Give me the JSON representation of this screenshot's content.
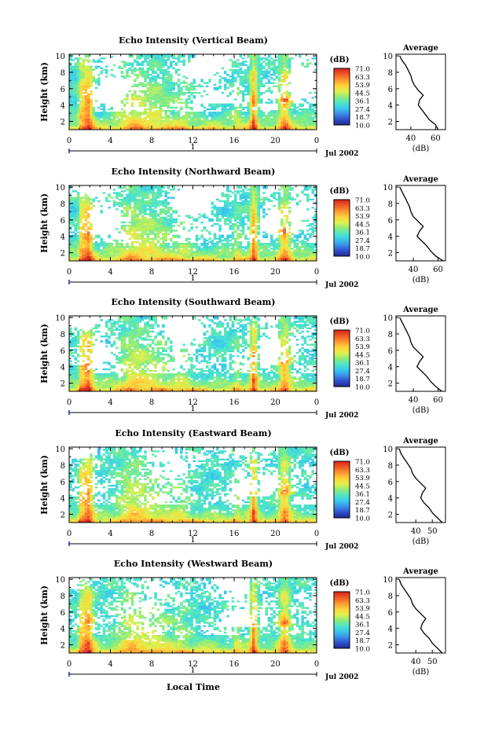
{
  "chart_data": {
    "type": "heatmap",
    "xlabel": "Local Time",
    "date_label": "Jul 2002",
    "day_label": "1",
    "x_ticks": [
      "0",
      "4",
      "8",
      "12",
      "16",
      "20",
      "0"
    ],
    "xlim": [
      0,
      24
    ],
    "ylabel": "Height (km)",
    "y_ticks": [
      "2",
      "4",
      "6",
      "8",
      "10"
    ],
    "ylim": [
      1,
      10.2
    ],
    "colorbar": {
      "title": "(dB)",
      "ticks": [
        "71.0",
        "63.3",
        "53.9",
        "44.5",
        "36.1",
        "27.4",
        "18.7",
        "10.0"
      ],
      "range": [
        10.0,
        71.0
      ],
      "colors": [
        "#1e2a8c",
        "#2f4cc8",
        "#3b8ee8",
        "#38c8ee",
        "#4ee6c8",
        "#8cec7a",
        "#e0f04c",
        "#ffd23a",
        "#ff9830",
        "#f05a26",
        "#d8241e"
      ]
    },
    "panels": [
      {
        "title": "Echo Intensity (Vertical Beam)",
        "profile_title": "Average",
        "profile_xlabel": "(dB)",
        "profile_xticks": [
          "40",
          "60"
        ],
        "profile_xlim": [
          28,
          68
        ],
        "profile_yticks": [
          "2",
          "4",
          "6",
          "8",
          "10"
        ],
        "profile": [
          [
            1.0,
            62
          ],
          [
            1.6,
            60
          ],
          [
            2.2,
            55
          ],
          [
            2.8,
            52
          ],
          [
            3.4,
            49
          ],
          [
            4.0,
            46
          ],
          [
            4.6,
            47
          ],
          [
            5.2,
            50
          ],
          [
            5.8,
            46
          ],
          [
            6.4,
            43
          ],
          [
            7.0,
            41
          ],
          [
            7.6,
            40
          ],
          [
            8.2,
            38
          ],
          [
            8.8,
            36
          ],
          [
            9.4,
            33
          ],
          [
            10.0,
            31
          ]
        ]
      },
      {
        "title": "Echo Intensity (Northward Beam)",
        "profile_title": "Average",
        "profile_xlabel": "(dB)",
        "profile_xticks": [
          "40",
          "60"
        ],
        "profile_xlim": [
          26,
          66
        ],
        "profile_yticks": [
          "2",
          "4",
          "6",
          "8",
          "10"
        ],
        "profile": [
          [
            1.0,
            64
          ],
          [
            1.6,
            58
          ],
          [
            2.2,
            54
          ],
          [
            2.8,
            51
          ],
          [
            3.4,
            47
          ],
          [
            4.0,
            43
          ],
          [
            4.6,
            45
          ],
          [
            5.2,
            48
          ],
          [
            5.8,
            44
          ],
          [
            6.4,
            40
          ],
          [
            7.0,
            38
          ],
          [
            7.6,
            37
          ],
          [
            8.2,
            35
          ],
          [
            8.8,
            33
          ],
          [
            9.4,
            31
          ],
          [
            10.0,
            29
          ]
        ]
      },
      {
        "title": "Echo Intensity (Southward Beam)",
        "profile_title": "Average",
        "profile_xlabel": "(dB)",
        "profile_xticks": [
          "40",
          "60"
        ],
        "profile_xlim": [
          26,
          66
        ],
        "profile_yticks": [
          "2",
          "4",
          "6",
          "8",
          "10"
        ],
        "profile": [
          [
            1.0,
            63
          ],
          [
            1.6,
            58
          ],
          [
            2.2,
            54
          ],
          [
            2.8,
            51
          ],
          [
            3.4,
            47
          ],
          [
            4.0,
            43
          ],
          [
            4.6,
            45
          ],
          [
            5.2,
            48
          ],
          [
            5.8,
            44
          ],
          [
            6.4,
            40
          ],
          [
            7.0,
            38
          ],
          [
            7.6,
            37
          ],
          [
            8.2,
            35
          ],
          [
            8.8,
            33
          ],
          [
            9.4,
            31
          ],
          [
            10.0,
            29
          ]
        ]
      },
      {
        "title": "Echo Intensity (Eastward Beam)",
        "profile_title": "Average",
        "profile_xlabel": "(dB)",
        "profile_xticks": [
          "40",
          "50"
        ],
        "profile_xlim": [
          28,
          58
        ],
        "profile_yticks": [
          "2",
          "4",
          "6",
          "8",
          "10"
        ],
        "profile": [
          [
            1.0,
            56
          ],
          [
            1.6,
            53
          ],
          [
            2.2,
            50
          ],
          [
            2.8,
            48
          ],
          [
            3.4,
            45
          ],
          [
            4.0,
            43
          ],
          [
            4.6,
            44
          ],
          [
            5.2,
            46
          ],
          [
            5.8,
            43
          ],
          [
            6.4,
            40
          ],
          [
            7.0,
            38
          ],
          [
            7.6,
            37
          ],
          [
            8.2,
            35
          ],
          [
            8.8,
            33
          ],
          [
            9.4,
            31
          ],
          [
            10.0,
            30
          ]
        ]
      },
      {
        "title": "Echo Intensity (Westward Beam)",
        "profile_title": "Average",
        "profile_xlabel": "(dB)",
        "profile_xticks": [
          "40",
          "50"
        ],
        "profile_xlim": [
          28,
          58
        ],
        "profile_yticks": [
          "2",
          "4",
          "6",
          "8",
          "10"
        ],
        "profile": [
          [
            1.0,
            56
          ],
          [
            1.6,
            53
          ],
          [
            2.2,
            50
          ],
          [
            2.8,
            48
          ],
          [
            3.4,
            45
          ],
          [
            4.0,
            43
          ],
          [
            4.6,
            44
          ],
          [
            5.2,
            46
          ],
          [
            5.8,
            43
          ],
          [
            6.4,
            40
          ],
          [
            7.0,
            38
          ],
          [
            7.6,
            37
          ],
          [
            8.2,
            35
          ],
          [
            8.8,
            33
          ],
          [
            9.4,
            31
          ],
          [
            10.0,
            30
          ]
        ]
      }
    ]
  }
}
